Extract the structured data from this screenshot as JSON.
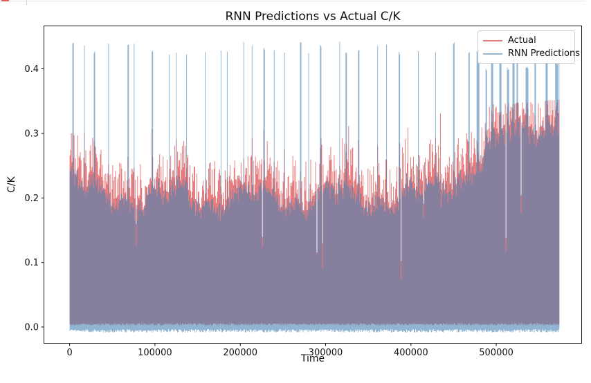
{
  "page": {
    "background": "#ffffff",
    "top_bar": {
      "accent_color": "#d95f5f",
      "line_color": "#e4e4e4",
      "tab_tick_color": "#cfcfcf"
    }
  },
  "chart_data": {
    "type": "line",
    "title": "RNN Predictions vs Actual C/K",
    "xlabel": "Time",
    "ylabel": "C/K",
    "xlim": [
      -30500,
      600500
    ],
    "ylim": [
      -0.0257,
      0.4671
    ],
    "x_range_data": [
      0,
      574000
    ],
    "xticks": [
      0,
      100000,
      200000,
      300000,
      400000,
      500000
    ],
    "xtick_labels": [
      "0",
      "100000",
      "200000",
      "300000",
      "400000",
      "500000"
    ],
    "yticks": [
      0.0,
      0.1,
      0.2,
      0.3,
      0.4
    ],
    "ytick_labels": [
      "0.0",
      "0.1",
      "0.2",
      "0.3",
      "0.4"
    ],
    "grid": false,
    "axis_color": "#111111",
    "legend": {
      "position": "upper right",
      "entries": [
        {
          "label": "Actual",
          "color": "#e67d7e"
        },
        {
          "label": "RNN Predictions",
          "color": "#90b4d2"
        }
      ]
    },
    "series": [
      {
        "name": "Actual",
        "base_color": "#d62728",
        "alpha": 0.6,
        "role": "actual",
        "summary": "dense oscillating series 0..~0.21 left rising to ~0.34 right, frequent tips to 0.24-0.30"
      },
      {
        "name": "RNN Predictions",
        "base_color": "#4682b4",
        "alpha": 0.6,
        "role": "predictions",
        "summary": "dense oscillating series -0.008..~0.20, quasi-periodic needles to 0.40-0.445, denser/wider on right"
      }
    ],
    "profile": {
      "seed": 1337,
      "columns": 710,
      "band": {
        "base": 0.202,
        "wave1_amp": 0.016,
        "wave1_period": 19,
        "wave2_amp": 0.01,
        "wave2_period": 6.5,
        "noise": 0.022,
        "left_boost": 0.03,
        "left_boost_end": 0.05,
        "rise_start": 0.68,
        "rise_amount": 0.118
      },
      "red": {
        "offset": 0.006,
        "tip_max": 0.06,
        "spike_p": 0.08,
        "spike_extra": 0.05,
        "cap_left": 0.3,
        "cap_right": 0.352,
        "bottom_min": 0.0025,
        "bottom_var": 0.0035
      },
      "blue": {
        "jitter": 0.022,
        "spike_height": 0.422,
        "spike_height_var": 0.022,
        "spike_gap_min": 9,
        "spike_gap_var": 20,
        "right_freq_t": 0.8,
        "right_spike_height": 0.398,
        "right_spike_height_var": 0.03,
        "right_gap_min": 6,
        "right_gap_var": 12,
        "bottom_base": -0.0035,
        "bottom_var": 0.005,
        "cap": 0.447,
        "last_col_top": 0.42
      },
      "notch": {
        "p": 0.016,
        "p_mid": 0.045,
        "mid_start": 0.5,
        "mid_end": 0.78,
        "depth_min": 0.07,
        "depth_var": 0.15
      }
    }
  }
}
